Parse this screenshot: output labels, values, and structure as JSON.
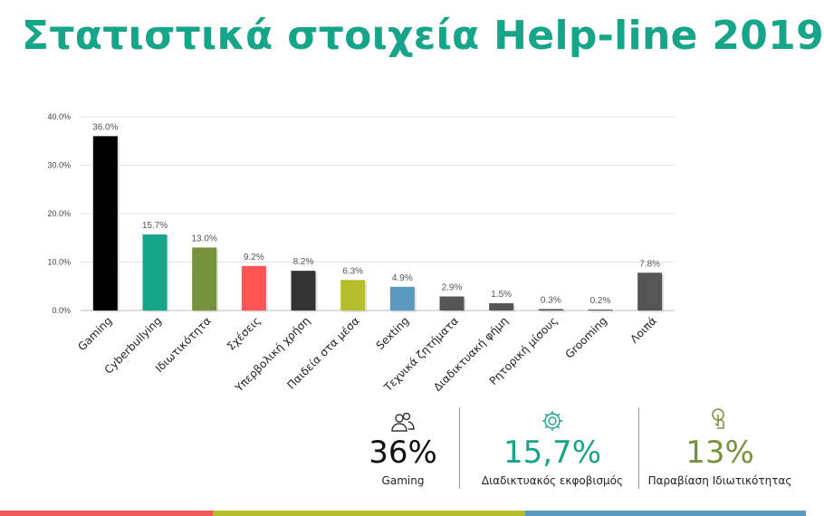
{
  "title": "Στατιστικά στοιχεία Help-line 2019",
  "chart_data": {
    "type": "bar",
    "categories": [
      "Gaming",
      "Cyberbullying",
      "Ιδιωτικότητα",
      "Σχέσεις",
      "Υπερβολική χρήση",
      "Παιδεία στα μέσα",
      "Sexting",
      "Τεχνικά ζητήματα",
      "Διαδικτυακή φήμη",
      "Ρητορική μίσους",
      "Grooming",
      "Λοιπά"
    ],
    "values": [
      36.0,
      15.7,
      13.0,
      9.2,
      8.2,
      6.3,
      4.9,
      2.9,
      1.5,
      0.3,
      0.2,
      7.8
    ],
    "data_labels": [
      "36.0%",
      "15.7%",
      "13.0%",
      "9.2%",
      "8.2%",
      "6.3%",
      "4.9%",
      "2.9%",
      "1.5%",
      "0.3%",
      "0.2%",
      "7.8%"
    ],
    "colors": [
      "#000000",
      "#17a589",
      "#76923c",
      "#ff5555",
      "#333333",
      "#b5bd2a",
      "#5a9ac0",
      "#555555",
      "#555555",
      "#555555",
      "#555555",
      "#555555"
    ],
    "yticks": [
      "0.0%",
      "10.0%",
      "20.0%",
      "30.0%",
      "40.0%"
    ],
    "ylim": [
      0,
      40
    ],
    "grid": true
  },
  "stats": [
    {
      "value": "36%",
      "label": "Gaming",
      "color": "#111111",
      "icon": "users-icon"
    },
    {
      "value": "15,7%",
      "label": "Διαδικτυακός εκφοβισμός",
      "color": "#17a589",
      "icon": "gear-icon"
    },
    {
      "value": "13%",
      "label": "Παραβίαση Ιδιωτικότητας",
      "color": "#76923c",
      "icon": "touch-icon"
    }
  ],
  "footer_colors": [
    "#f15a5a",
    "#b5bd2a",
    "#5a9ac0"
  ]
}
